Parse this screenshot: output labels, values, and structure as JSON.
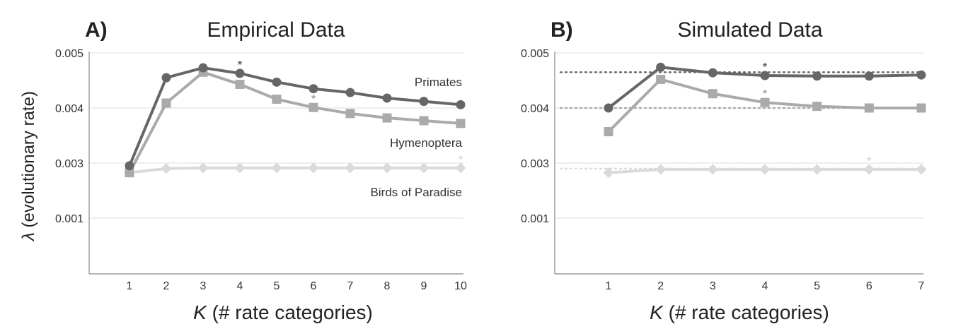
{
  "shared": {
    "ylabel_symbol": "λ",
    "ylabel_text": " (evolutionary rate)",
    "xlabel_symbol": "K",
    "xlabel_text": " (# rate categories)",
    "y_ticks": [
      "0.005",
      "0.004",
      "0.003",
      "0.001"
    ]
  },
  "colors": {
    "primates": "#666666",
    "hymenoptera": "#aaaaaa",
    "birds": "#dadada",
    "axis": "#888888",
    "grid": "#dddddd"
  },
  "chart_data": [
    {
      "type": "line",
      "panel": "A)",
      "title": "Empirical Data",
      "xlabel": "K (# rate categories)",
      "ylabel": "λ (evolutionary rate)",
      "x": [
        1,
        2,
        3,
        4,
        5,
        6,
        7,
        8,
        9,
        10
      ],
      "y_ticks": [
        "0.005",
        "0.004",
        "0.003",
        "0.001"
      ],
      "series": [
        {
          "name": "Primates",
          "marker": "circle",
          "color": "#666666",
          "values": [
            0.0029,
            0.00455,
            0.00473,
            0.00463,
            0.00447,
            0.00435,
            0.00428,
            0.00418,
            0.00412,
            0.00406
          ],
          "star_at": 4
        },
        {
          "name": "Hymenoptera",
          "marker": "square",
          "color": "#aaaaaa",
          "values": [
            0.00265,
            0.00409,
            0.00465,
            0.00443,
            0.00416,
            0.00401,
            0.0039,
            0.00382,
            0.00377,
            0.00372
          ],
          "star_at": 6
        },
        {
          "name": "Birds of Paradise",
          "marker": "diamond",
          "color": "#dadada",
          "values": [
            0.00265,
            0.0028,
            0.00282,
            0.00282,
            0.00282,
            0.00282,
            0.00282,
            0.00282,
            0.00282,
            0.00282
          ],
          "star_at": 10
        }
      ]
    },
    {
      "type": "line",
      "panel": "B)",
      "title": "Simulated Data",
      "xlabel": "K (# rate categories)",
      "ylabel": "",
      "x": [
        1,
        2,
        3,
        4,
        5,
        6,
        7
      ],
      "y_ticks": [
        "0.005",
        "0.004",
        "0.003",
        "0.001"
      ],
      "reference_lines": [
        0.00465,
        0.004,
        0.0028
      ],
      "series": [
        {
          "marker": "circle",
          "color": "#666666",
          "values": [
            0.004,
            0.00474,
            0.00464,
            0.00459,
            0.00458,
            0.00458,
            0.0046
          ],
          "star_at": 4
        },
        {
          "marker": "square",
          "color": "#aaaaaa",
          "values": [
            0.00357,
            0.00452,
            0.00426,
            0.0041,
            0.00403,
            0.004,
            0.004
          ],
          "star_at": 4
        },
        {
          "marker": "diamond",
          "color": "#dadada",
          "values": [
            0.00265,
            0.00277,
            0.00277,
            0.00277,
            0.00277,
            0.00277,
            0.00277
          ],
          "star_at": 6
        }
      ]
    }
  ]
}
